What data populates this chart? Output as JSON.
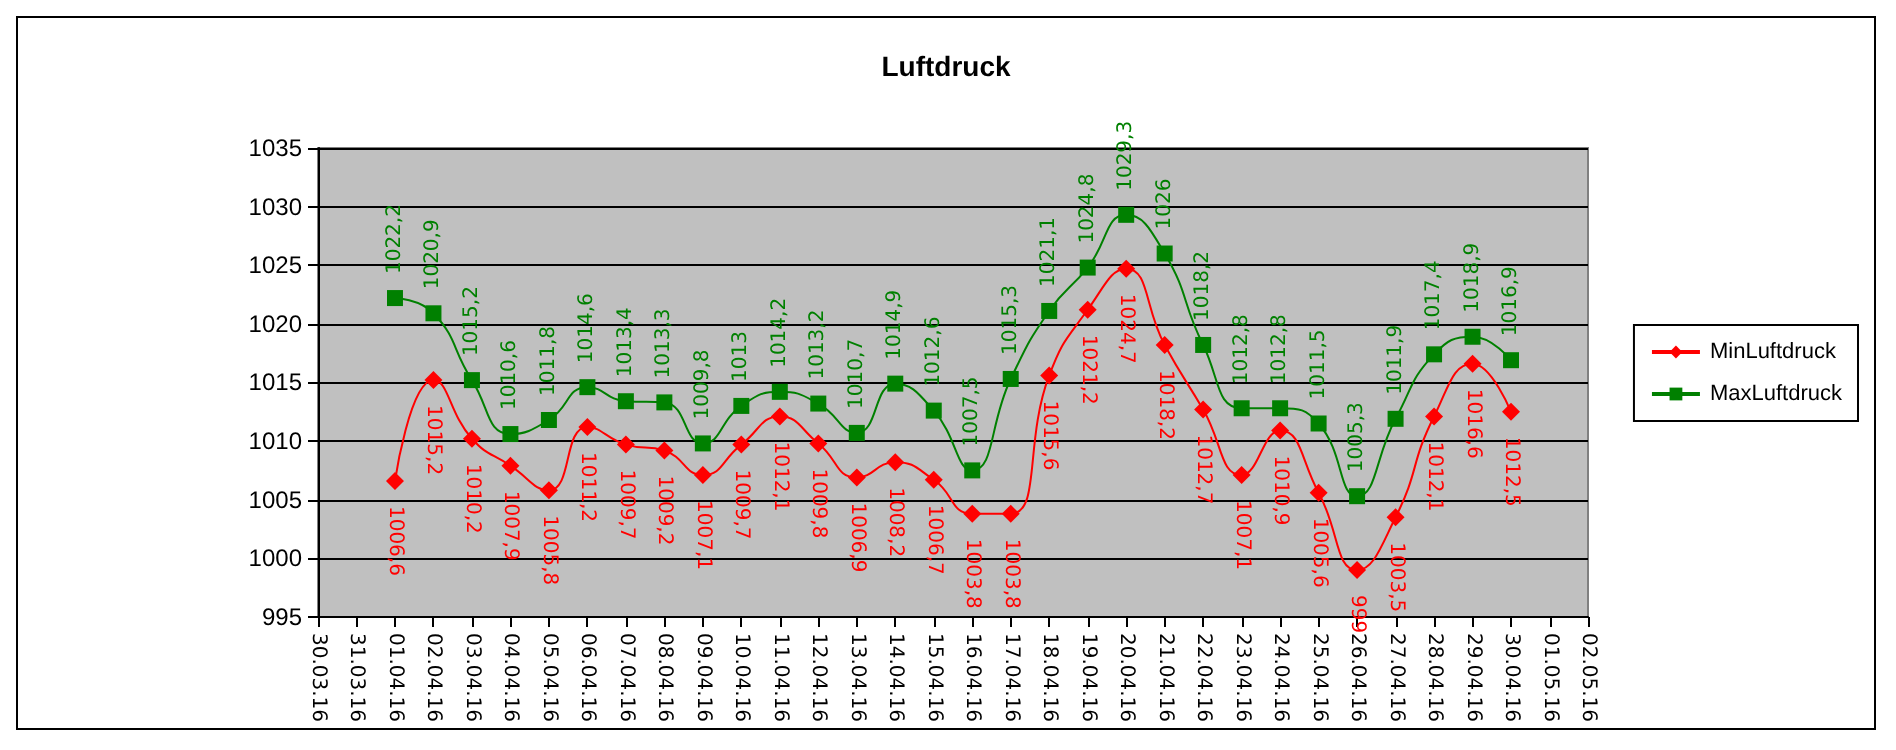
{
  "chart_data": {
    "type": "line",
    "title": "Luftdruck",
    "categories": [
      "30.03.16",
      "31.03.16",
      "01.04.16",
      "02.04.16",
      "03.04.16",
      "04.04.16",
      "05.04.16",
      "06.04.16",
      "07.04.16",
      "08.04.16",
      "09.04.16",
      "10.04.16",
      "11.04.16",
      "12.04.16",
      "13.04.16",
      "14.04.16",
      "15.04.16",
      "16.04.16",
      "17.04.16",
      "18.04.16",
      "19.04.16",
      "20.04.16",
      "21.04.16",
      "22.04.16",
      "23.04.16",
      "24.04.16",
      "25.04.16",
      "26.04.16",
      "27.04.16",
      "28.04.16",
      "29.04.16",
      "30.04.16",
      "01.05.16",
      "02.05.16"
    ],
    "series": [
      {
        "name": "MinLuftdruck",
        "color": "#ff0000",
        "marker": "diamond",
        "value_labels": [
          null,
          null,
          "1006,6",
          "1015,2",
          "1010,2",
          "1007,9",
          "1005,8",
          "1011,2",
          "1009,7",
          "1009,2",
          "1007,1",
          "1009,7",
          "1012,1",
          "1009,8",
          "1006,9",
          "1008,2",
          "1006,7",
          "1003,8",
          "1003,8",
          "1015,6",
          "1021,2",
          "1024,7",
          "1018,2",
          "1012,7",
          "1007,1",
          "1010,9",
          "1005,6",
          "999",
          "1003,5",
          "1012,1",
          "1016,6",
          "1012,5",
          null,
          null
        ],
        "values": [
          null,
          null,
          1006.6,
          1015.2,
          1010.2,
          1007.9,
          1005.8,
          1011.2,
          1009.7,
          1009.2,
          1007.1,
          1009.7,
          1012.1,
          1009.8,
          1006.9,
          1008.2,
          1006.7,
          1003.8,
          1003.8,
          1015.6,
          1021.2,
          1024.7,
          1018.2,
          1012.7,
          1007.1,
          1010.9,
          1005.6,
          999,
          1003.5,
          1012.1,
          1016.6,
          1012.5,
          null,
          null
        ]
      },
      {
        "name": "MaxLuftdruck",
        "color": "#008000",
        "marker": "square",
        "value_labels": [
          null,
          null,
          "1022,2",
          "1020,9",
          "1015,2",
          "1010,6",
          "1011,8",
          "1014,6",
          "1013,4",
          "1013,3",
          "1009,8",
          "1013",
          "1014,2",
          "1013,2",
          "1010,7",
          "1014,9",
          "1012,6",
          "1007,5",
          "1015,3",
          "1021,1",
          "1024,8",
          "1029,3",
          "1026",
          "1018,2",
          "1012,8",
          "1012,8",
          "1011,5",
          "1005,3",
          "1011,9",
          "1017,4",
          "1018,9",
          "1016,9",
          null,
          null
        ],
        "values": [
          null,
          null,
          1022.2,
          1020.9,
          1015.2,
          1010.6,
          1011.8,
          1014.6,
          1013.4,
          1013.3,
          1009.8,
          1013,
          1014.2,
          1013.2,
          1010.7,
          1014.9,
          1012.6,
          1007.5,
          1015.3,
          1021.1,
          1024.8,
          1029.3,
          1026,
          1018.2,
          1012.8,
          1012.8,
          1011.5,
          1005.3,
          1011.9,
          1017.4,
          1018.9,
          1016.9,
          null,
          null
        ]
      }
    ],
    "ylim": [
      995,
      1035
    ],
    "yticks": [
      995,
      1000,
      1005,
      1010,
      1015,
      1020,
      1025,
      1030,
      1035
    ],
    "grid": "y",
    "legend": "right"
  }
}
